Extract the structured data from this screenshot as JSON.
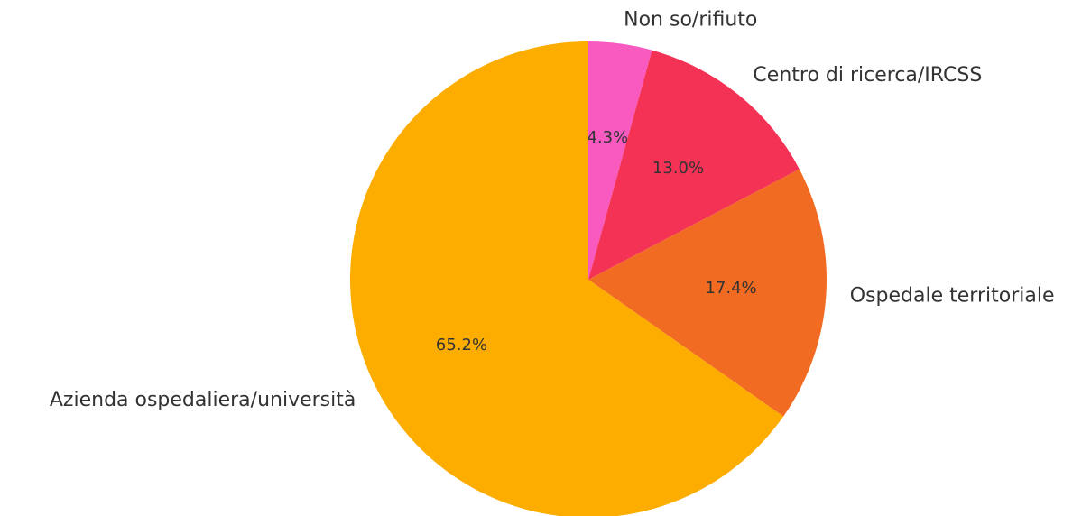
{
  "chart_data": {
    "type": "pie",
    "categories": [
      "Non so/rifiuto",
      "Centro di ricerca/IRCSS",
      "Ospedale territoriale",
      "Azienda ospedaliera/università"
    ],
    "values": [
      4.3,
      13.0,
      17.4,
      65.2
    ],
    "value_labels": [
      "4.3%",
      "13.0%",
      "17.4%",
      "65.2%"
    ],
    "colors": [
      "#f85ac0",
      "#f43256",
      "#f26b22",
      "#fdad00"
    ],
    "startangle": 90,
    "counterclock": false
  }
}
